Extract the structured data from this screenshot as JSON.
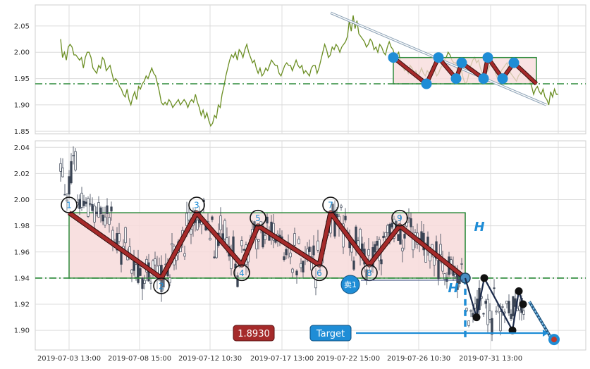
{
  "chart_data": [
    {
      "type": "line",
      "panel": "top",
      "ylim": [
        1.845,
        2.09
      ],
      "yticks": [
        1.85,
        1.9,
        1.95,
        2.0,
        2.05
      ],
      "grid": true,
      "line_color": "#6b8e23",
      "series": [
        {
          "values": [
            2.025,
            1.99,
            2.0,
            1.985,
            2.01,
            2.015,
            2.01,
            1.995,
            1.995,
            1.99,
            1.985,
            1.99,
            1.97,
            1.99,
            2.0,
            2.0,
            1.99,
            1.97,
            1.965,
            1.96,
            1.975,
            1.97,
            1.99,
            1.985,
            1.965,
            1.97,
            1.975,
            1.96,
            1.945,
            1.95,
            1.945,
            1.935,
            1.93,
            1.92,
            1.915,
            1.93,
            1.91,
            1.9,
            1.915,
            1.925,
            1.91,
            1.935,
            1.93,
            1.94,
            1.945,
            1.955,
            1.95,
            1.96,
            1.97,
            1.96,
            1.955,
            1.94,
            1.925,
            1.905,
            1.9,
            1.905,
            1.9,
            1.91,
            1.905,
            1.895,
            1.9,
            1.905,
            1.91,
            1.9,
            1.905,
            1.91,
            1.905,
            1.895,
            1.905,
            1.91,
            1.905,
            1.92,
            1.905,
            1.895,
            1.88,
            1.89,
            1.875,
            1.885,
            1.87,
            1.86,
            1.865,
            1.88,
            1.875,
            1.9,
            1.895,
            1.92,
            1.935,
            1.955,
            1.97,
            1.985,
            1.995,
            1.99,
            2.0,
            1.985,
            2.005,
            2.0,
            1.99,
            2.005,
            2.015,
            2.0,
            1.99,
            1.98,
            1.985,
            1.97,
            1.96,
            1.97,
            1.955,
            1.96,
            1.97,
            1.965,
            1.975,
            1.985,
            1.98,
            1.975,
            1.975,
            1.96,
            1.955,
            1.965,
            1.975,
            1.98,
            1.975,
            1.975,
            1.965,
            1.975,
            1.985,
            1.975,
            1.97,
            1.975,
            1.96,
            1.965,
            1.96,
            1.955,
            1.97,
            1.975,
            1.975,
            1.96,
            1.97,
            1.985,
            2.0,
            2.015,
            2.005,
            1.99,
            1.995,
            2.01,
            2.005,
            2.015,
            2.01,
            2.0,
            2.01,
            2.015,
            2.02,
            2.03,
            2.06,
            2.04,
            2.07,
            2.045,
            2.06,
            2.035,
            2.03,
            2.025,
            2.02,
            2.01,
            2.015,
            2.025,
            2.02,
            2.005,
            2.01,
            2.0,
            2.015,
            2.01,
            2.0,
            1.995,
            2.01,
            2.02,
            2.01,
            2.005,
            1.99,
            1.995,
            2.0,
            1.98,
            1.975,
            1.965,
            1.97,
            1.96,
            1.975,
            1.97,
            1.96,
            1.965,
            1.955,
            1.96,
            1.97,
            1.96,
            1.955,
            1.965,
            1.96,
            1.955,
            1.96,
            1.965,
            1.955,
            1.96,
            1.97,
            1.975,
            1.985,
            1.99,
            2.0,
            1.995,
            1.985,
            1.98,
            1.98,
            1.965,
            1.96,
            1.965,
            1.95,
            1.94,
            1.945,
            1.96,
            1.975,
            1.985,
            1.99,
            1.98,
            1.985,
            1.97,
            1.96,
            1.955,
            1.96,
            1.965,
            1.975,
            1.98,
            1.97,
            1.96,
            1.95,
            1.955,
            1.965,
            1.97,
            1.975,
            1.98,
            1.97,
            1.96,
            1.955,
            1.95,
            1.945,
            1.955,
            1.96,
            1.97,
            1.965,
            1.955,
            1.95,
            1.945,
            1.935,
            1.92,
            1.93,
            1.935,
            1.925,
            1.92,
            1.93,
            1.915,
            1.91,
            1.9,
            1.925,
            1.915,
            1.93,
            1.92,
            1.92
          ]
        }
      ],
      "overlay": {
        "box": {
          "y0": 1.94,
          "y1": 1.99
        },
        "dash_level": 1.94,
        "pivots": [
          1.99,
          1.94,
          1.99,
          1.95,
          1.98,
          1.95,
          1.99,
          1.95,
          1.98,
          1.94
        ],
        "trendline": {
          "y0": 2.075,
          "y1": 1.9
        }
      }
    },
    {
      "type": "candlestick",
      "panel": "bottom",
      "ylim": [
        1.885,
        2.045
      ],
      "yticks": [
        1.9,
        1.92,
        1.94,
        1.96,
        1.98,
        2.0,
        2.02,
        2.04
      ],
      "xtick_labels": [
        "2019-07-03 13:00",
        "2019-07-08 15:00",
        "2019-07-12 10:30",
        "2019-07-17 13:00",
        "2019-07-22 15:00",
        "2019-07-26 10:30",
        "2019-07-31 13:00"
      ],
      "grid": true,
      "pattern": {
        "box": {
          "y0": 1.94,
          "y1": 1.99,
          "color": "#2e8b3c",
          "fill": "#f7dada"
        },
        "support_level": 1.94,
        "pivot_labels": [
          "1",
          "2",
          "3",
          "4",
          "5",
          "6",
          "7",
          "8",
          "9"
        ],
        "pivots": [
          1.99,
          1.94,
          1.99,
          1.95,
          1.98,
          1.95,
          1.99,
          1.95,
          1.98
        ],
        "end_pivot": 1.94,
        "height_label": "H",
        "after_path": [
          1.94,
          1.91,
          1.94,
          1.9,
          1.93,
          1.92
        ],
        "target_price": 1.893
      },
      "annotations": {
        "sell_label": "卖1",
        "price_box": "1.8930",
        "target_label": "Target"
      },
      "colors": {
        "box": "#2e8b3c",
        "box_fill": "#f7dada",
        "zigzag": "#a52a2a",
        "dash": "#2e8b3c",
        "blue": "#1f8dd6",
        "price_box": "#a52a2a",
        "target_box": "#1f8dd6"
      }
    }
  ]
}
